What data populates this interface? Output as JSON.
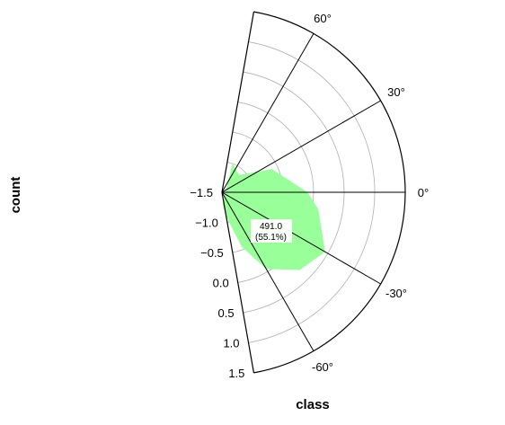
{
  "chart_data": {
    "type": "polar-area",
    "title": "",
    "xlabel": "class",
    "ylabel": "count",
    "theta_range_deg": [
      -80,
      80
    ],
    "r_range": [
      -1.5,
      1.5
    ],
    "radial_ticks": [
      "−1.5",
      "−1.0",
      "−0.5",
      "0.0",
      "0.5",
      "1.0",
      "1.5"
    ],
    "angular_ticks": [
      {
        "deg": 60,
        "label": "60°"
      },
      {
        "deg": 30,
        "label": "30°"
      },
      {
        "deg": 0,
        "label": "0°"
      },
      {
        "deg": -30,
        "label": "-30°"
      },
      {
        "deg": -60,
        "label": "-60°"
      }
    ],
    "grid": true,
    "series": [
      {
        "color": "#99ff99",
        "total": 491.0,
        "share_percent": 55.1,
        "points": [
          {
            "theta": 70,
            "r": -1.0
          },
          {
            "theta": 45,
            "r": -1.1
          },
          {
            "theta": 25,
            "r": -0.6
          },
          {
            "theta": 0,
            "r": -0.1
          },
          {
            "theta": -10,
            "r": 0.1
          },
          {
            "theta": -30,
            "r": 0.45
          },
          {
            "theta": -45,
            "r": 0.3
          },
          {
            "theta": -60,
            "r": -0.05
          },
          {
            "theta": -70,
            "r": -0.55
          },
          {
            "theta": -80,
            "r": -1.1
          },
          {
            "theta": -87,
            "r": -1.3
          }
        ]
      }
    ],
    "annotation": {
      "line1": "491.0",
      "line2": "(55.1%)"
    }
  }
}
